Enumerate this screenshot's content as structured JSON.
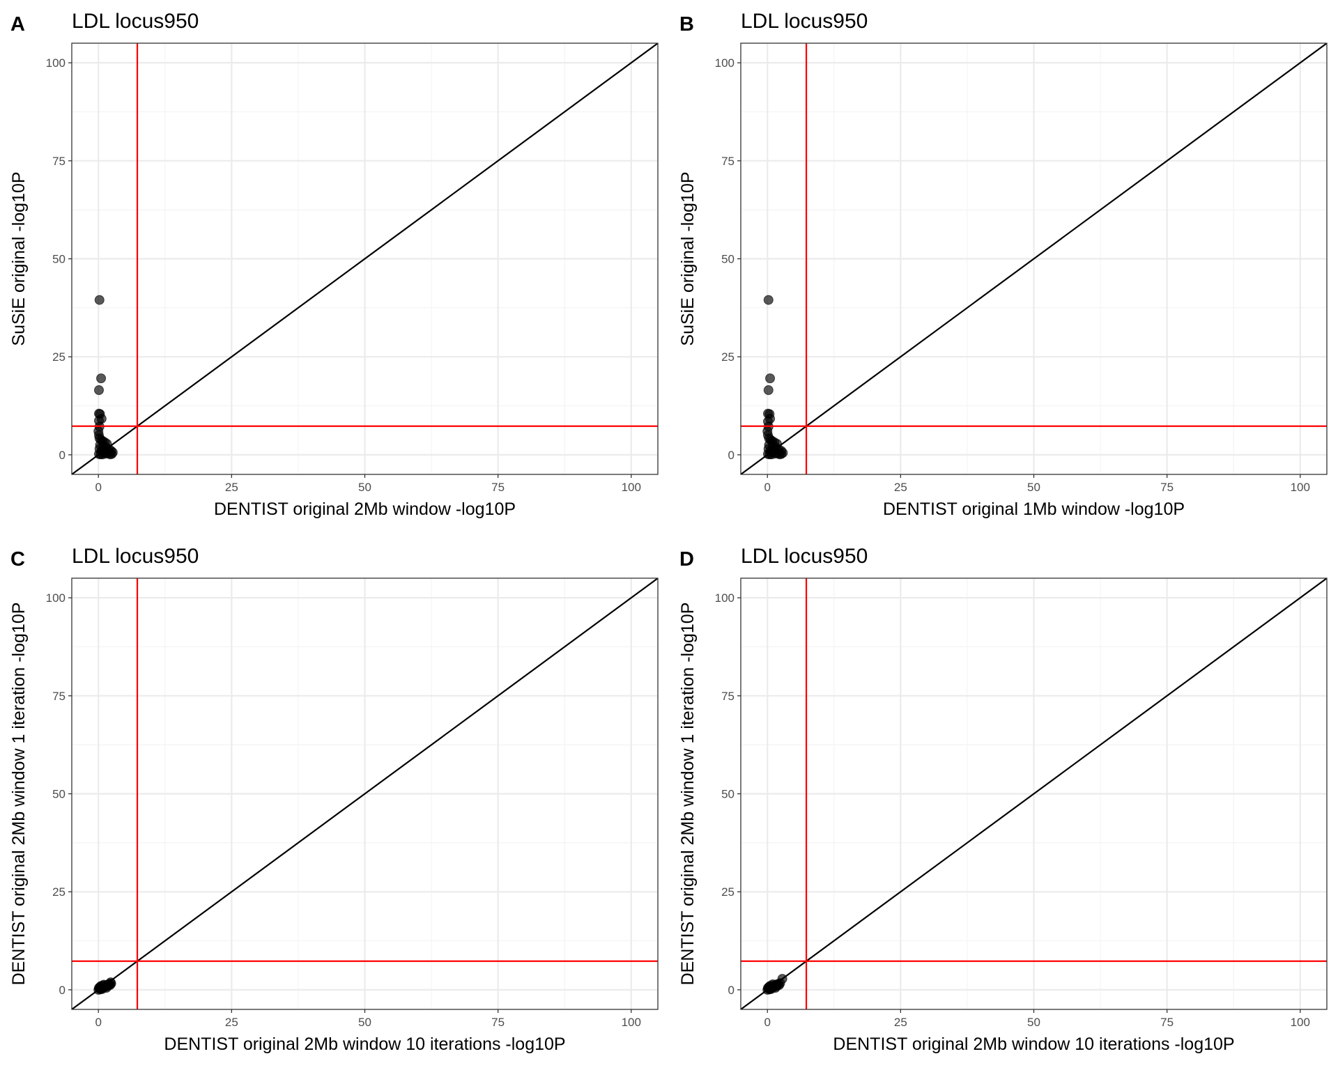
{
  "colors": {
    "point": "#000000",
    "threshold": "#ff0000",
    "diagonal": "#000000",
    "grid_major": "#ebebeb",
    "grid_minor": "#f4f4f4",
    "border": "#333333"
  },
  "chart_data": [
    {
      "type": "scatter",
      "panel": "A",
      "title": "LDL locus950",
      "xlabel": "DENTIST original 2Mb window -log10P",
      "ylabel": "SuSiE original -log10P",
      "xlim": [
        -5,
        105
      ],
      "ylim": [
        -5,
        105
      ],
      "ticks": [
        0,
        25,
        50,
        75,
        100
      ],
      "tick_labels": [
        "0",
        "25",
        "50",
        "75",
        "100"
      ],
      "grid": true,
      "threshold": 7.3,
      "diagonal": true,
      "points": [
        [
          0.2,
          39.5
        ],
        [
          0.5,
          19.5
        ],
        [
          0.1,
          16.5
        ],
        [
          0.1,
          10.5
        ],
        [
          0.3,
          10.4
        ],
        [
          0.6,
          9.2
        ],
        [
          0.1,
          8.7
        ],
        [
          0.2,
          7.2
        ],
        [
          0,
          6
        ],
        [
          0.1,
          5
        ],
        [
          0.2,
          4.2
        ],
        [
          0.5,
          3.8
        ],
        [
          0.8,
          3.5
        ],
        [
          1.2,
          3.2
        ],
        [
          1.6,
          2.8
        ],
        [
          0.3,
          2.5
        ],
        [
          0.9,
          2.2
        ],
        [
          1.5,
          1.8
        ],
        [
          2,
          1.4
        ],
        [
          2.4,
          1
        ],
        [
          2.7,
          0.6
        ],
        [
          0.2,
          1.5
        ],
        [
          0.6,
          1
        ],
        [
          1,
          0.6
        ],
        [
          1.4,
          0.3
        ],
        [
          1.9,
          0.4
        ],
        [
          2.5,
          0.2
        ],
        [
          0.1,
          0.2
        ],
        [
          0.4,
          0.1
        ],
        [
          0.8,
          0.1
        ],
        [
          1.1,
          1.2
        ],
        [
          2.2,
          0.1
        ]
      ]
    },
    {
      "type": "scatter",
      "panel": "B",
      "title": "LDL locus950",
      "xlabel": "DENTIST original 1Mb window -log10P",
      "ylabel": "SuSiE original -log10P",
      "xlim": [
        -5,
        105
      ],
      "ylim": [
        -5,
        105
      ],
      "ticks": [
        0,
        25,
        50,
        75,
        100
      ],
      "tick_labels": [
        "0",
        "25",
        "50",
        "75",
        "100"
      ],
      "grid": true,
      "threshold": 7.3,
      "diagonal": true,
      "points": [
        [
          0.2,
          39.5
        ],
        [
          0.5,
          19.5
        ],
        [
          0.2,
          16.5
        ],
        [
          0.1,
          10.5
        ],
        [
          0.4,
          10.4
        ],
        [
          0.5,
          9.2
        ],
        [
          0.1,
          8.5
        ],
        [
          0.2,
          7.2
        ],
        [
          0,
          6
        ],
        [
          0.1,
          5
        ],
        [
          0.3,
          4.2
        ],
        [
          0.6,
          3.8
        ],
        [
          0.9,
          3.5
        ],
        [
          1.3,
          3.2
        ],
        [
          1.8,
          2.8
        ],
        [
          0.3,
          2.5
        ],
        [
          1,
          2.2
        ],
        [
          1.6,
          1.8
        ],
        [
          2.1,
          1.4
        ],
        [
          2.6,
          1
        ],
        [
          2.9,
          0.5
        ],
        [
          0.2,
          1.5
        ],
        [
          0.6,
          1
        ],
        [
          1,
          0.6
        ],
        [
          1.5,
          0.3
        ],
        [
          2,
          0.4
        ],
        [
          2.6,
          0.2
        ],
        [
          0.1,
          0.2
        ],
        [
          0.4,
          0.1
        ],
        [
          0.8,
          0.1
        ],
        [
          1.2,
          1.2
        ],
        [
          2.3,
          0.1
        ]
      ]
    },
    {
      "type": "scatter",
      "panel": "C",
      "title": "LDL locus950",
      "xlabel": "DENTIST original 2Mb window 10 iterations -log10P",
      "ylabel": "DENTIST original 2Mb window 1 iteration -log10P",
      "xlim": [
        -5,
        105
      ],
      "ylim": [
        -5,
        105
      ],
      "ticks": [
        0,
        25,
        50,
        75,
        100
      ],
      "tick_labels": [
        "0",
        "25",
        "50",
        "75",
        "100"
      ],
      "grid": true,
      "threshold": 7.3,
      "diagonal": true,
      "points": [
        [
          0,
          0
        ],
        [
          0.2,
          0.3
        ],
        [
          0.4,
          0.1
        ],
        [
          0.3,
          0.7
        ],
        [
          0.6,
          0.5
        ],
        [
          0.8,
          0.9
        ],
        [
          1,
          0.6
        ],
        [
          1.2,
          1.1
        ],
        [
          1.4,
          0.8
        ],
        [
          1.6,
          1.2
        ],
        [
          1.8,
          1
        ],
        [
          2,
          1.5
        ],
        [
          2.2,
          1.2
        ],
        [
          2.4,
          1.6
        ],
        [
          0.5,
          1
        ],
        [
          1,
          1.3
        ],
        [
          1.5,
          0.5
        ],
        [
          0.1,
          0.5
        ],
        [
          2.3,
          1.9
        ],
        [
          0.7,
          0.2
        ]
      ]
    },
    {
      "type": "scatter",
      "panel": "D",
      "title": "LDL locus950",
      "xlabel": "DENTIST original 2Mb window 10 iterations -log10P",
      "ylabel": "DENTIST original 2Mb window 1 iteration -log10P",
      "xlim": [
        -5,
        105
      ],
      "ylim": [
        -5,
        105
      ],
      "ticks": [
        0,
        25,
        50,
        75,
        100
      ],
      "tick_labels": [
        "0",
        "25",
        "50",
        "75",
        "100"
      ],
      "grid": true,
      "threshold": 7.3,
      "diagonal": true,
      "points": [
        [
          0,
          0
        ],
        [
          0.2,
          0.3
        ],
        [
          0.4,
          0.1
        ],
        [
          0.3,
          0.7
        ],
        [
          0.6,
          0.5
        ],
        [
          0.8,
          0.9
        ],
        [
          1,
          0.6
        ],
        [
          1.2,
          1.1
        ],
        [
          1.4,
          0.8
        ],
        [
          1.6,
          1.3
        ],
        [
          1.8,
          1
        ],
        [
          2,
          1.5
        ],
        [
          2.2,
          1.2
        ],
        [
          2.4,
          1.7
        ],
        [
          0.5,
          1
        ],
        [
          1,
          1.4
        ],
        [
          1.5,
          0.5
        ],
        [
          0.1,
          0.5
        ],
        [
          2.8,
          2.8
        ],
        [
          0.7,
          0.2
        ]
      ]
    }
  ]
}
